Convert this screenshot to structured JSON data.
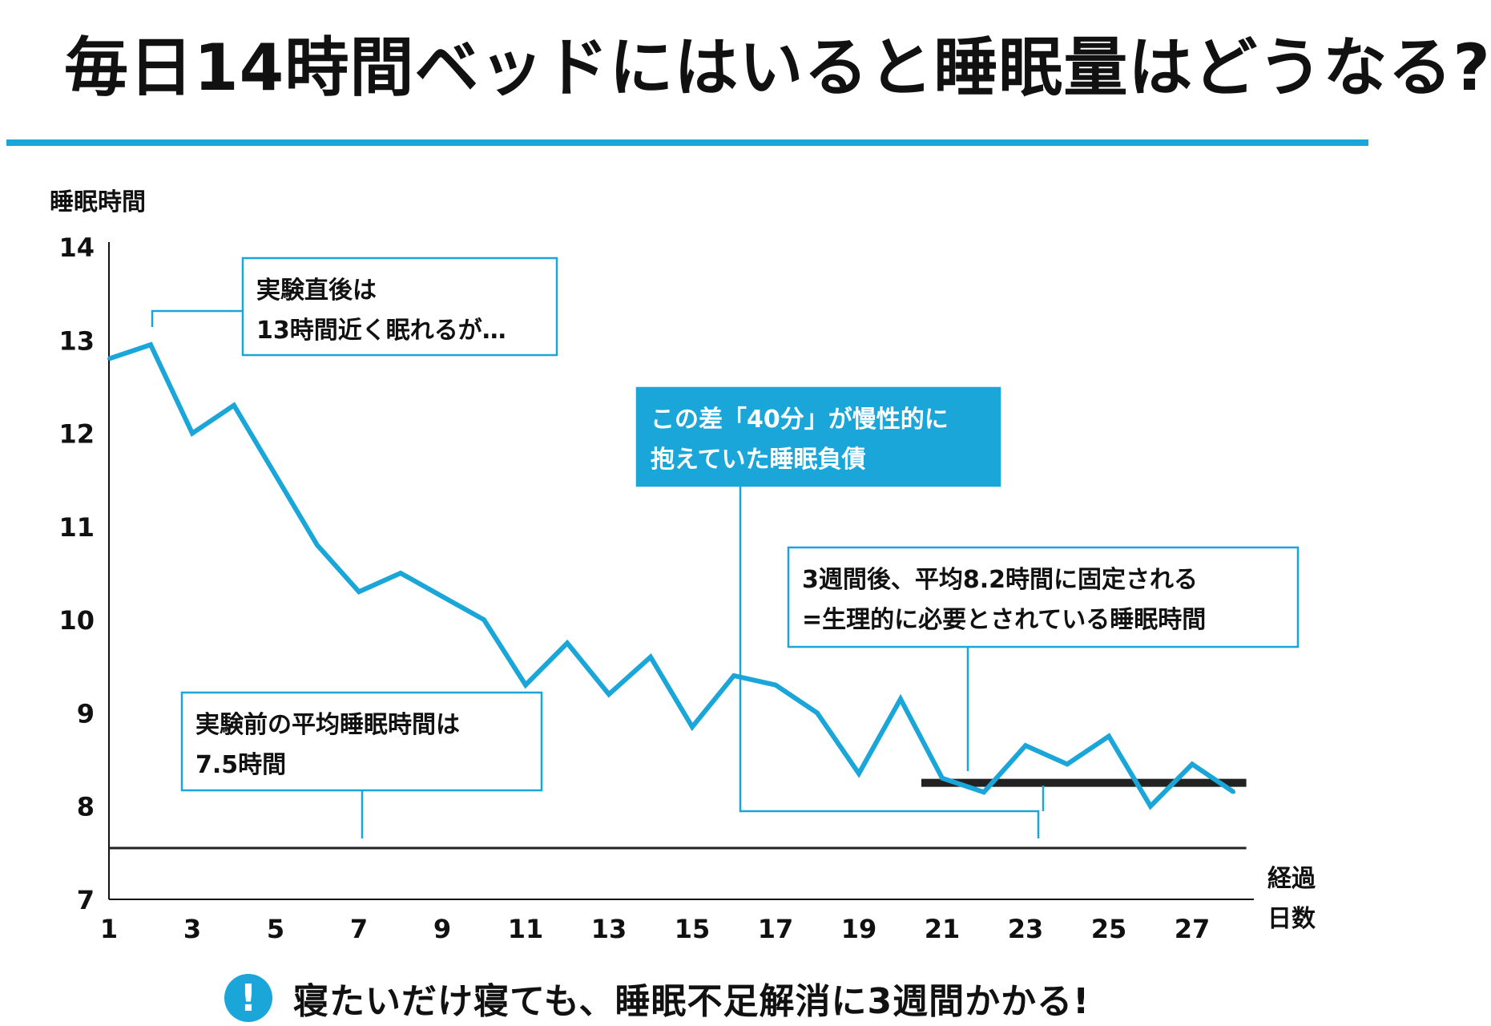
{
  "title": "毎日14時間ベッドにはいると睡眠量はどうなる?",
  "colors": {
    "accent": "#1aa6d9",
    "text": "#111111",
    "reference": "#222222"
  },
  "chart_data": {
    "type": "line",
    "ylabel": "睡眠時間",
    "xlabel_lines": [
      "経過",
      "日数"
    ],
    "ylim": [
      7,
      14
    ],
    "xlim": [
      1,
      28
    ],
    "yticks": [
      7,
      8,
      9,
      10,
      11,
      12,
      13,
      14
    ],
    "xticks": [
      1,
      3,
      5,
      7,
      9,
      11,
      13,
      15,
      17,
      19,
      21,
      23,
      25,
      27
    ],
    "grid": false,
    "series": [
      {
        "x": [
          1,
          2,
          3,
          4,
          5,
          6,
          7,
          8,
          9,
          10,
          11,
          12,
          13,
          14,
          15,
          16,
          17,
          18,
          19,
          20,
          21,
          22,
          23,
          24,
          25,
          26,
          27,
          28
        ],
        "values": [
          12.8,
          12.95,
          12.0,
          12.3,
          11.55,
          10.8,
          10.3,
          10.5,
          10.25,
          10.0,
          9.3,
          9.75,
          9.2,
          9.6,
          8.85,
          9.4,
          9.3,
          9.0,
          8.35,
          9.15,
          8.3,
          8.15,
          8.65,
          8.45,
          8.75,
          8.0,
          8.45,
          8.15
        ]
      }
    ],
    "reference_lines": [
      {
        "y": 7.55,
        "x_from": 1,
        "x_to": 28.3,
        "style": "thin"
      },
      {
        "y": 8.25,
        "x_from": 20.5,
        "x_to": 28.3,
        "style": "thick"
      }
    ],
    "annotations": [
      {
        "lines": [
          "実験直後は",
          "13時間近く眠れるが…"
        ],
        "style": "outline"
      },
      {
        "lines": [
          "この差「40分」が慢性的に",
          "抱えていた睡眠負債"
        ],
        "style": "filled"
      },
      {
        "lines": [
          "3週間後、平均8.2時間に固定される",
          "=生理的に必要とされている睡眠時間"
        ],
        "style": "outline"
      },
      {
        "lines": [
          "実験前の平均睡眠時間は",
          "7.5時間"
        ],
        "style": "outline"
      }
    ]
  },
  "footer": {
    "badge": "!",
    "note": "寝たいだけ寝ても、睡眠不足解消に3週間かかる!"
  }
}
